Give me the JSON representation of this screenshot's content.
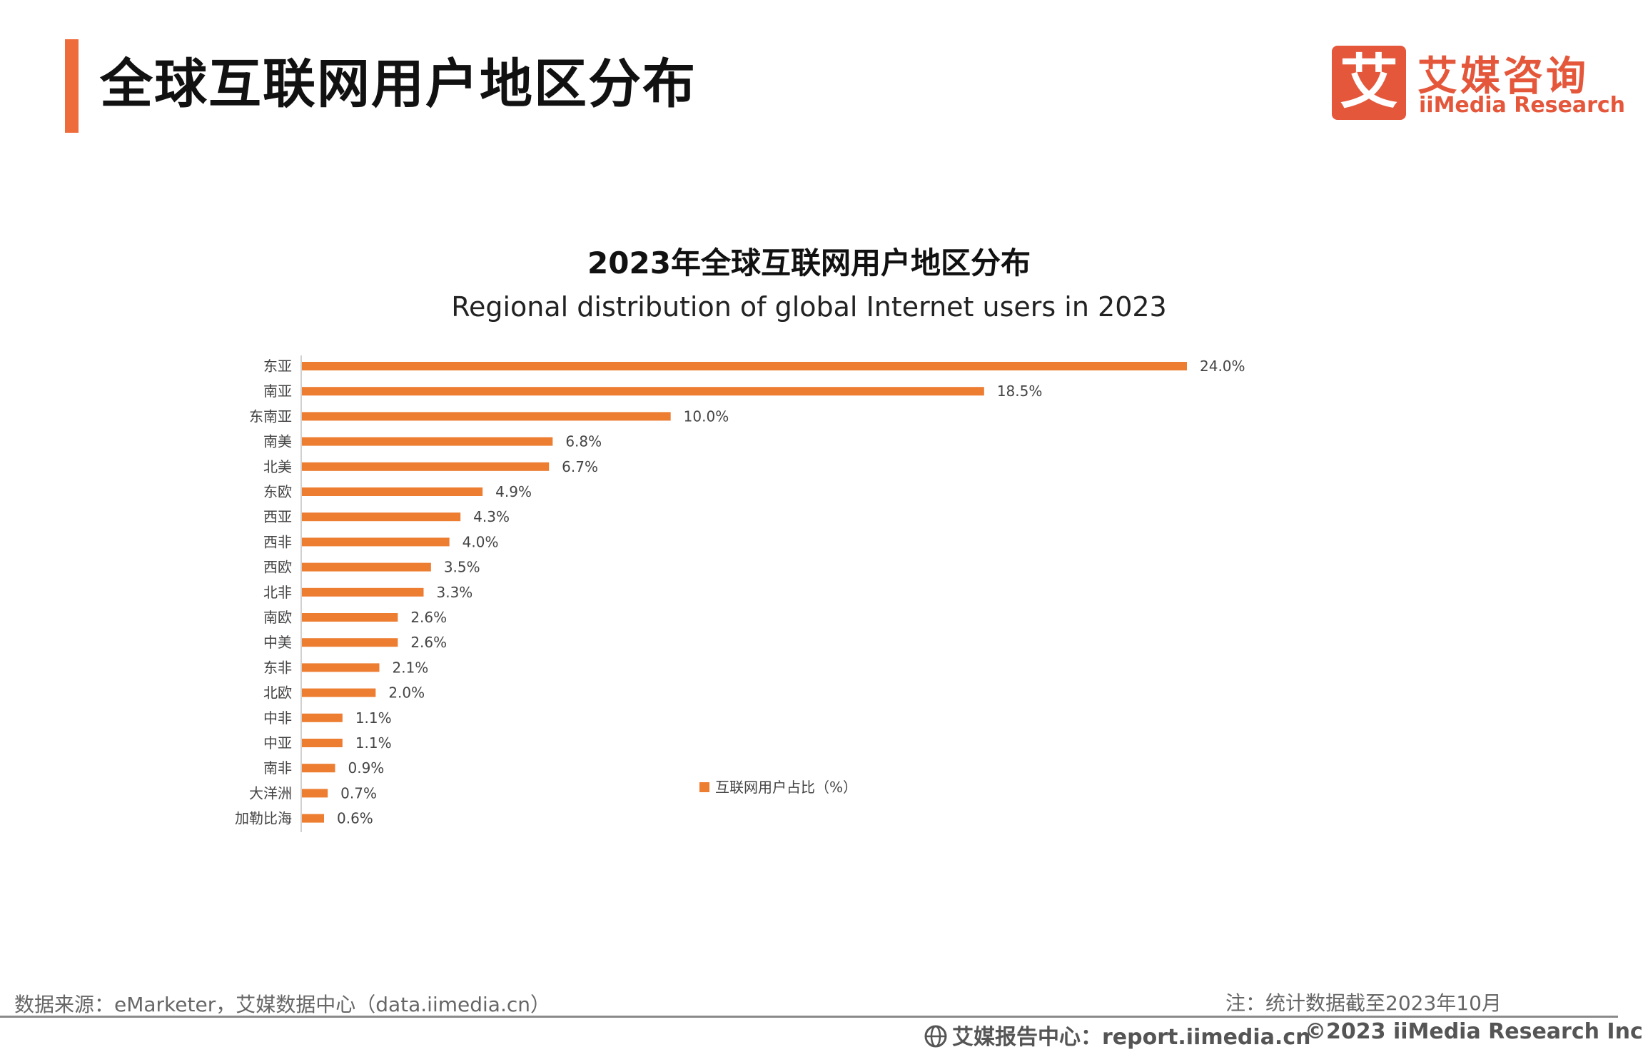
{
  "page": {
    "title": "全球互联网用户地区分布",
    "accent_color": "#ee6b3b"
  },
  "logo": {
    "mark": "艾",
    "cn": "艾媒咨询",
    "en": "iiMedia Research",
    "color": "#e4573b"
  },
  "chart_data": {
    "type": "bar",
    "orientation": "horizontal",
    "title": "2023年全球互联网用户地区分布",
    "subtitle": "Regional distribution of global Internet users in 2023",
    "categories": [
      "东亚",
      "南亚",
      "东南亚",
      "南美",
      "北美",
      "东欧",
      "西亚",
      "西非",
      "西欧",
      "北非",
      "南欧",
      "中美",
      "东非",
      "北欧",
      "中非",
      "中亚",
      "南非",
      "大洋洲",
      "加勒比海"
    ],
    "series": [
      {
        "name": "互联网用户占比（%）",
        "color": "#ed7d31",
        "values": [
          24.0,
          18.5,
          10.0,
          6.8,
          6.7,
          4.9,
          4.3,
          4.0,
          3.5,
          3.3,
          2.6,
          2.6,
          2.1,
          2.0,
          1.1,
          1.1,
          0.9,
          0.7,
          0.6
        ],
        "labels": [
          "24.0%",
          "18.5%",
          "10.0%",
          "6.8%",
          "6.7%",
          "4.9%",
          "4.3%",
          "4.0%",
          "3.5%",
          "3.3%",
          "2.6%",
          "2.6%",
          "2.1%",
          "2.0%",
          "1.1%",
          "1.1%",
          "0.9%",
          "0.7%",
          "0.6%"
        ]
      }
    ],
    "xlim": [
      0,
      24.0
    ],
    "grid": false,
    "legend_position": "right-bottom"
  },
  "footer": {
    "source": "数据来源：eMarketer，艾媒数据中心（data.iimedia.cn）",
    "note": "注：统计数据截至2023年10月",
    "report": "艾媒报告中心：report.iimedia.cn",
    "copyright": "©2023  iiMedia Research  Inc"
  }
}
